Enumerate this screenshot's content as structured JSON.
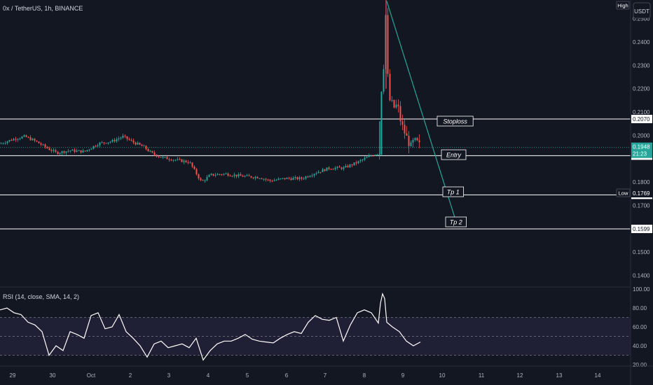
{
  "header": {
    "symbol_line": "0x / TetherUS, 1h, BINANCE",
    "high_badge": "High",
    "low_badge": "Low",
    "currency_button": "USDT"
  },
  "chart_data": {
    "type": "candlestick",
    "symbol": "0x / TetherUS",
    "interval": "1h",
    "exchange": "BINANCE",
    "y_axis": {
      "min": 0.135,
      "max": 0.258,
      "ticks": [
        "0.2500",
        "0.2400",
        "0.2300",
        "0.2200",
        "0.2100",
        "0.2000",
        "0.1800",
        "0.1700",
        "0.1500",
        "0.1400"
      ]
    },
    "x_axis": {
      "labels": [
        "29",
        "30",
        "Oct",
        "2",
        "3",
        "4",
        "5",
        "6",
        "7",
        "8",
        "9",
        "10",
        "11",
        "12",
        "13",
        "14"
      ]
    },
    "price_path": [
      [
        0,
        0.1965
      ],
      [
        20,
        0.1985
      ],
      [
        35,
        0.1995
      ],
      [
        50,
        0.1975
      ],
      [
        70,
        0.194
      ],
      [
        80,
        0.1925
      ],
      [
        100,
        0.1935
      ],
      [
        120,
        0.193
      ],
      [
        140,
        0.1965
      ],
      [
        160,
        0.1975
      ],
      [
        175,
        0.1995
      ],
      [
        190,
        0.197
      ],
      [
        205,
        0.195
      ],
      [
        215,
        0.1925
      ],
      [
        230,
        0.1905
      ],
      [
        250,
        0.1895
      ],
      [
        270,
        0.1885
      ],
      [
        287,
        0.18
      ],
      [
        300,
        0.183
      ],
      [
        320,
        0.1835
      ],
      [
        345,
        0.1825
      ],
      [
        370,
        0.182
      ],
      [
        385,
        0.1805
      ],
      [
        405,
        0.1815
      ],
      [
        430,
        0.1815
      ],
      [
        450,
        0.184
      ],
      [
        470,
        0.186
      ],
      [
        490,
        0.186
      ],
      [
        510,
        0.1885
      ],
      [
        530,
        0.1915
      ],
      [
        541,
        0.1925
      ],
      [
        544,
        0.22
      ],
      [
        547,
        0.23
      ],
      [
        549,
        0.245
      ],
      [
        551,
        0.258
      ],
      [
        553,
        0.225
      ],
      [
        556,
        0.215
      ],
      [
        562,
        0.212
      ],
      [
        567,
        0.213
      ],
      [
        572,
        0.205
      ],
      [
        580,
        0.199
      ],
      [
        586,
        0.195
      ],
      [
        590,
        0.1975
      ],
      [
        596,
        0.1965
      ],
      [
        600,
        0.1948
      ]
    ],
    "rsi": {
      "title": "RSI (14, close, SMA, 14, 2)",
      "ticks": [
        "100.00",
        "80.00",
        "60.00",
        "40.00",
        "20.00"
      ],
      "band_upper": 70,
      "band_mid": 50,
      "band_lower": 30,
      "path": [
        [
          0,
          78
        ],
        [
          10,
          80
        ],
        [
          20,
          75
        ],
        [
          30,
          73
        ],
        [
          40,
          65
        ],
        [
          50,
          62
        ],
        [
          60,
          55
        ],
        [
          70,
          30
        ],
        [
          80,
          40
        ],
        [
          90,
          35
        ],
        [
          100,
          55
        ],
        [
          110,
          52
        ],
        [
          120,
          48
        ],
        [
          130,
          72
        ],
        [
          140,
          75
        ],
        [
          150,
          58
        ],
        [
          160,
          60
        ],
        [
          170,
          73
        ],
        [
          180,
          55
        ],
        [
          190,
          48
        ],
        [
          200,
          40
        ],
        [
          210,
          28
        ],
        [
          220,
          42
        ],
        [
          230,
          45
        ],
        [
          240,
          38
        ],
        [
          250,
          40
        ],
        [
          260,
          42
        ],
        [
          270,
          38
        ],
        [
          280,
          48
        ],
        [
          290,
          25
        ],
        [
          300,
          35
        ],
        [
          310,
          42
        ],
        [
          320,
          45
        ],
        [
          330,
          45
        ],
        [
          340,
          48
        ],
        [
          350,
          52
        ],
        [
          360,
          47
        ],
        [
          370,
          45
        ],
        [
          380,
          44
        ],
        [
          390,
          43
        ],
        [
          400,
          48
        ],
        [
          410,
          52
        ],
        [
          420,
          55
        ],
        [
          430,
          53
        ],
        [
          440,
          65
        ],
        [
          450,
          72
        ],
        [
          460,
          68
        ],
        [
          470,
          67
        ],
        [
          480,
          70
        ],
        [
          490,
          45
        ],
        [
          500,
          62
        ],
        [
          510,
          75
        ],
        [
          520,
          78
        ],
        [
          530,
          75
        ],
        [
          540,
          64
        ],
        [
          543,
          85
        ],
        [
          546,
          95
        ],
        [
          549,
          90
        ],
        [
          552,
          65
        ],
        [
          560,
          60
        ],
        [
          570,
          55
        ],
        [
          580,
          45
        ],
        [
          590,
          40
        ],
        [
          600,
          44
        ]
      ]
    },
    "levels": [
      {
        "name": "Stoploss",
        "value": 0.207,
        "label": "0.2070"
      },
      {
        "name": "Entry",
        "value": 0.1913,
        "label": "0.1913"
      },
      {
        "name": "Tp 1",
        "value": 0.1745,
        "label": "0.1745"
      },
      {
        "name": "Tp 2",
        "value": 0.1599,
        "label": "0.1599"
      }
    ],
    "current_price": {
      "label": "0.1948",
      "value": 0.1948,
      "countdown": "21:23"
    },
    "low_price": {
      "label": "0.1769",
      "value": 0.1769
    }
  }
}
